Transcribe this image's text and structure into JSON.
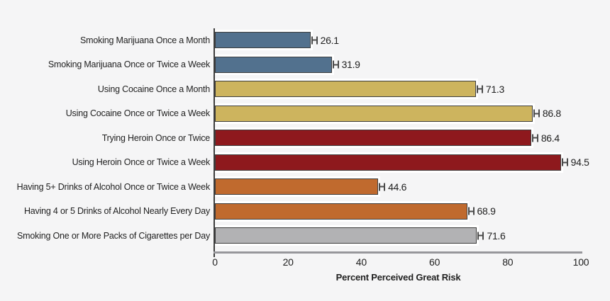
{
  "chart_data": {
    "type": "bar",
    "orientation": "horizontal",
    "title": "",
    "xlabel": "Percent Perceived Great Risk",
    "ylabel": "",
    "xlim": [
      0,
      100
    ],
    "xticks": [
      0,
      20,
      40,
      60,
      80,
      100
    ],
    "grid": false,
    "error_bars": true,
    "categories": [
      "Smoking Marijuana Once a Month",
      "Smoking Marijuana Once or Twice a Week",
      "Using Cocaine Once a Month",
      "Using Cocaine Once or Twice a Week",
      "Trying Heroin Once or Twice",
      "Using Heroin Once or Twice a Week",
      "Having 5+ Drinks of Alcohol Once or Twice a Week",
      "Having 4 or 5 Drinks of Alcohol Nearly Every Day",
      "Smoking One or More Packs of Cigarettes per Day"
    ],
    "values": [
      26.1,
      31.9,
      71.3,
      86.8,
      86.4,
      94.5,
      44.6,
      68.9,
      71.6
    ],
    "value_labels": [
      "26.1",
      "31.9",
      "71.3",
      "86.8",
      "86.4",
      "94.5",
      "44.6",
      "68.9",
      "71.6"
    ],
    "bar_colors": [
      "#52718e",
      "#52718e",
      "#cdb45e",
      "#cdb45e",
      "#8e191d",
      "#8e191d",
      "#c06a2e",
      "#c06a2e",
      "#b2b2b4"
    ]
  },
  "colors": {
    "background": "#f5f5f6",
    "bar_border": "#3e3e3e",
    "bar_halo": "#ffffff",
    "x_axis_line": "#97979b",
    "y_axis_line": "#3c3c3c",
    "error_bar": "#4a4a4a",
    "text": "#1f1f1f"
  }
}
